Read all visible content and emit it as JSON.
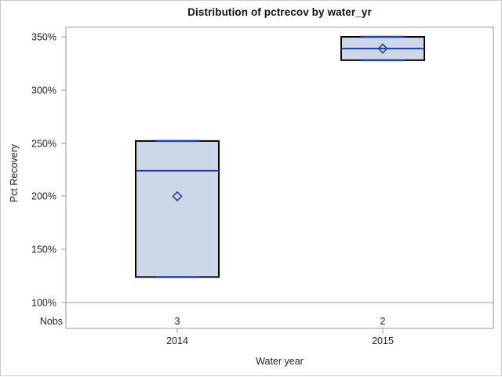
{
  "chart_data": {
    "type": "boxplot",
    "title": "Distribution of pctrecov by water_yr",
    "xlabel": "Water year",
    "ylabel": "Pct Recovery",
    "nobs_label": "Nobs",
    "categories": [
      "2014",
      "2015"
    ],
    "nobs": [
      3,
      2
    ],
    "ylim": [
      100,
      350
    ],
    "yticks": [
      100,
      150,
      200,
      250,
      300,
      350
    ],
    "ytick_labels": [
      "100%",
      "150%",
      "200%",
      "250%",
      "300%",
      "350%"
    ],
    "grid": false,
    "legend": false,
    "series": [
      {
        "category": "2014",
        "n": 3,
        "min": 124,
        "q1": 124,
        "median": 224,
        "q3": 252,
        "max": 252,
        "mean": 200
      },
      {
        "category": "2015",
        "n": 2,
        "min": 328,
        "q1": 328,
        "median": 339,
        "q3": 350,
        "max": 350,
        "mean": 339
      }
    ],
    "colors": {
      "box_fill": "#ccd7e8",
      "box_border": "#000000",
      "median_line": "#1f419b",
      "whisker": "#1f419b",
      "mean_marker": "#1f419b",
      "frame": "#999999",
      "tick": "#999999",
      "text": "#222222",
      "page_border": "#c9c9c9",
      "background": "#ffffff"
    }
  }
}
